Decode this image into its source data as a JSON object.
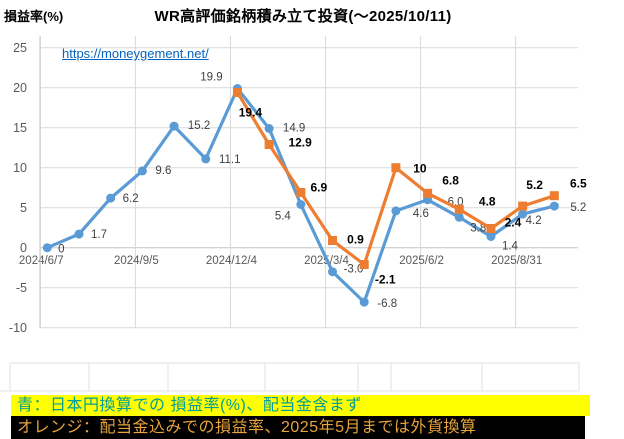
{
  "header": {
    "y_axis_title": "損益率(%)",
    "title": "WR高評価銘柄積み立て投資(～2025/10/11)",
    "url": "https://moneygement.net/"
  },
  "chart_data": {
    "type": "line",
    "title": "WR高評価銘柄積み立て投資(～2025/10/11)",
    "ylabel": "損益率(%)",
    "ylim": [
      -10,
      25
    ],
    "y_ticks": [
      25,
      20,
      15,
      10,
      5,
      0,
      -5,
      -10
    ],
    "grid": true,
    "legend_position": "none",
    "n_points": 17,
    "x_tick_indices": [
      0,
      3,
      6,
      9,
      12,
      15
    ],
    "x_tick_labels": [
      "2024/6/7",
      "2024/9/5",
      "2024/12/4",
      "2025/3/4",
      "2025/6/2",
      "2025/8/31"
    ],
    "series": [
      {
        "name": "日本円換算での損益率(%)、配当金含まず",
        "color": "#5B9BD5",
        "marker": "circle",
        "start_index": 0,
        "values": [
          0,
          1.7,
          6.2,
          9.6,
          15.2,
          11.1,
          19.9,
          14.9,
          5.4,
          -3.0,
          -6.8,
          4.6,
          6.0,
          3.8,
          1.4,
          4.2,
          5.2
        ],
        "labels": [
          "0",
          "1.7",
          "6.2",
          "9.6",
          "15.2",
          "11.1",
          "19.9",
          "14.9",
          "5.4",
          "-3.0",
          "-6.8",
          "4.6",
          "6.0",
          "3.8",
          "1.4",
          "4.2",
          "5.2"
        ]
      },
      {
        "name": "配当金込みでの損益率、2025年5月までは外貨換算",
        "color": "#ED7D31",
        "marker": "square",
        "start_index": 6,
        "values": [
          19.4,
          12.9,
          6.9,
          0.9,
          -2.1,
          10,
          6.8,
          4.8,
          2.4,
          5.2,
          6.5
        ],
        "labels": [
          "19.4",
          "12.9",
          "6.9",
          "0.9",
          "-2.1",
          "10",
          "6.8",
          "4.8",
          "2.4",
          "5.2",
          "6.5"
        ]
      }
    ]
  },
  "colors": {
    "blue_series": "#5B9BD5",
    "orange_series": "#ED7D31",
    "blue_label_text": "#404040",
    "orange_label_text": "#000000",
    "axis_text": "#595959",
    "gridline": "#D9D9D9",
    "url_blue": "#0563C1",
    "footnote_blue_bg": "#FFFF00",
    "footnote_blue_text": "#009E96",
    "footnote_orange_bg": "#000000",
    "footnote_orange_text": "#E8A33C"
  },
  "footnotes": [
    {
      "text": "青：日本円換算での 損益率(%)、配当金含まず"
    },
    {
      "text": "オレンジ：配当金込みでの損益率、2025年5月までは外貨換算"
    }
  ]
}
